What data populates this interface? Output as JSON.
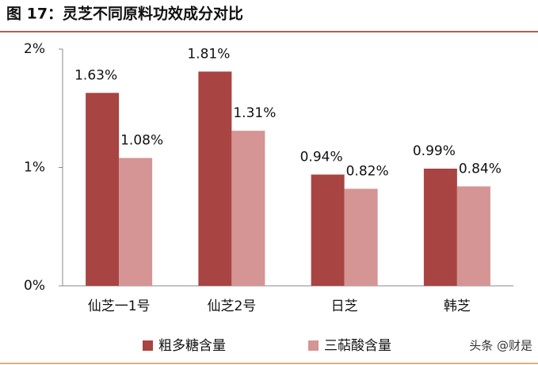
{
  "chart_data": {
    "type": "bar",
    "title": "图 17：灵芝不同原料功效成分对比",
    "categories": [
      "仙芝一1号",
      "仙芝2号",
      "日芝",
      "韩芝"
    ],
    "series": [
      {
        "name": "粗多糖含量",
        "color": "#a84442",
        "values": [
          1.63,
          1.81,
          0.94,
          0.99
        ],
        "value_labels": [
          "1.63%",
          "1.81%",
          "0.94%",
          "0.99%"
        ]
      },
      {
        "name": "三萜酸含量",
        "color": "#d49594",
        "values": [
          1.08,
          1.31,
          0.82,
          0.84
        ],
        "value_labels": [
          "1.08%",
          "1.31%",
          "0.82%",
          "0.84%"
        ]
      }
    ],
    "ylim": [
      0,
      2
    ],
    "yticks": [
      {
        "value": 0,
        "label": "0%"
      },
      {
        "value": 1,
        "label": "1%"
      },
      {
        "value": 2,
        "label": "2%"
      }
    ],
    "legend": "bottom",
    "watermark": "头条 @财是"
  }
}
